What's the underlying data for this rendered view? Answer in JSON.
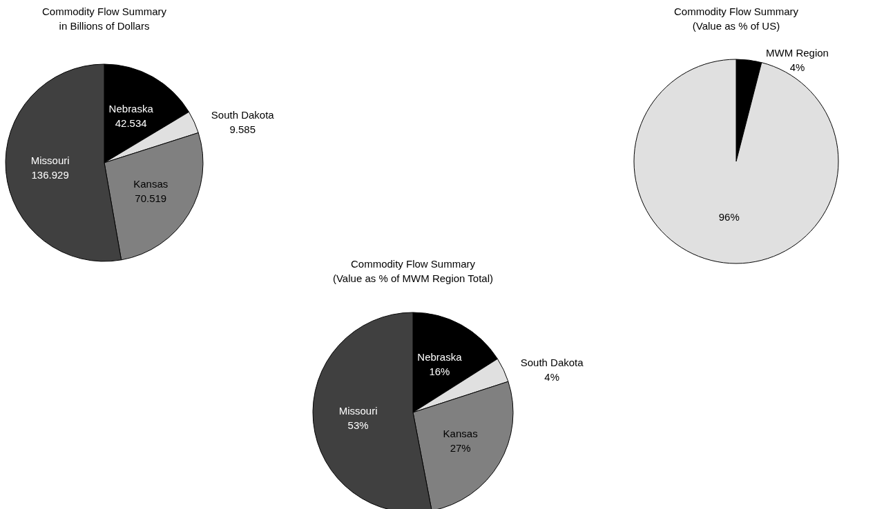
{
  "chart_data": [
    {
      "type": "pie",
      "title": "Commodity Flow Summary",
      "subtitle": "in Billions of Dollars",
      "categories": [
        "Nebraska",
        "South Dakota",
        "Kansas",
        "Missouri"
      ],
      "values": [
        42.534,
        9.585,
        70.519,
        136.929
      ],
      "colors": [
        "#000000",
        "#e0e0e0",
        "#808080",
        "#404040"
      ],
      "data_labels": true
    },
    {
      "type": "pie",
      "title": "Commodity Flow Summary",
      "subtitle": "(Value as % of US)",
      "categories": [
        "MWM Region",
        null
      ],
      "values": [
        4,
        96
      ],
      "colors": [
        "#000000",
        "#e0e0e0"
      ],
      "value_labels": [
        "4%",
        "96%"
      ]
    },
    {
      "type": "pie",
      "title": "Commodity Flow Summary",
      "subtitle": "(Value as % of MWM Region Total)",
      "categories": [
        "Nebraska",
        "South Dakota",
        "Kansas",
        "Missouri"
      ],
      "values": [
        16,
        4,
        27,
        53
      ],
      "colors": [
        "#000000",
        "#e0e0e0",
        "#808080",
        "#404040"
      ],
      "value_labels": [
        "16%",
        "4%",
        "27%",
        "53%"
      ]
    }
  ]
}
